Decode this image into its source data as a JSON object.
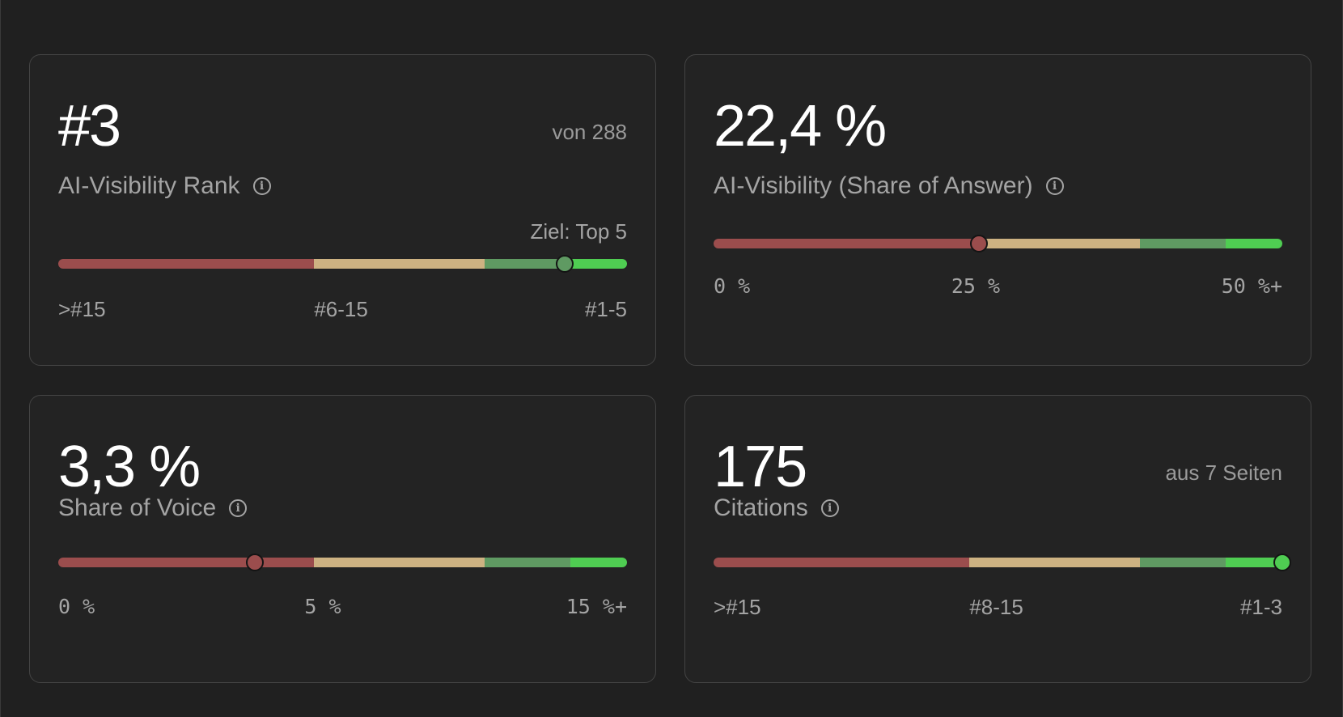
{
  "cards": [
    {
      "value": "#3",
      "side_text": "von 288",
      "label": "AI-Visibility Rank",
      "goal": "Ziel: Top 5",
      "ticks": [
        ">#15",
        "#6-15",
        "#1-5"
      ],
      "indicator_fraction": 0.891,
      "indicator_color": "#5f9a62"
    },
    {
      "value": "22,4 %",
      "side_text": "",
      "label": "AI-Visibility (Share of Answer)",
      "goal": "",
      "ticks": [
        "0 %",
        "25 %",
        "50 %+"
      ],
      "indicator_fraction": 0.467,
      "indicator_color": "#9b4d4d"
    },
    {
      "value": "3,3 %",
      "side_text": "",
      "label": "Share of Voice",
      "goal": "",
      "ticks": [
        "0 %",
        "5 %",
        "15 %+"
      ],
      "indicator_fraction": 0.346,
      "indicator_color": "#9b4d4d"
    },
    {
      "value": "175",
      "side_text": "aus 7 Seiten",
      "label": "Citations",
      "goal": "",
      "ticks": [
        ">#15",
        "#8-15",
        "#1-3"
      ],
      "indicator_fraction": 1.0,
      "indicator_color": "#4fcd52"
    }
  ],
  "colors": {
    "bad": "#9b4d4d",
    "medium": "#cdb282",
    "good": "#5f9a62",
    "best": "#4fcd52"
  }
}
